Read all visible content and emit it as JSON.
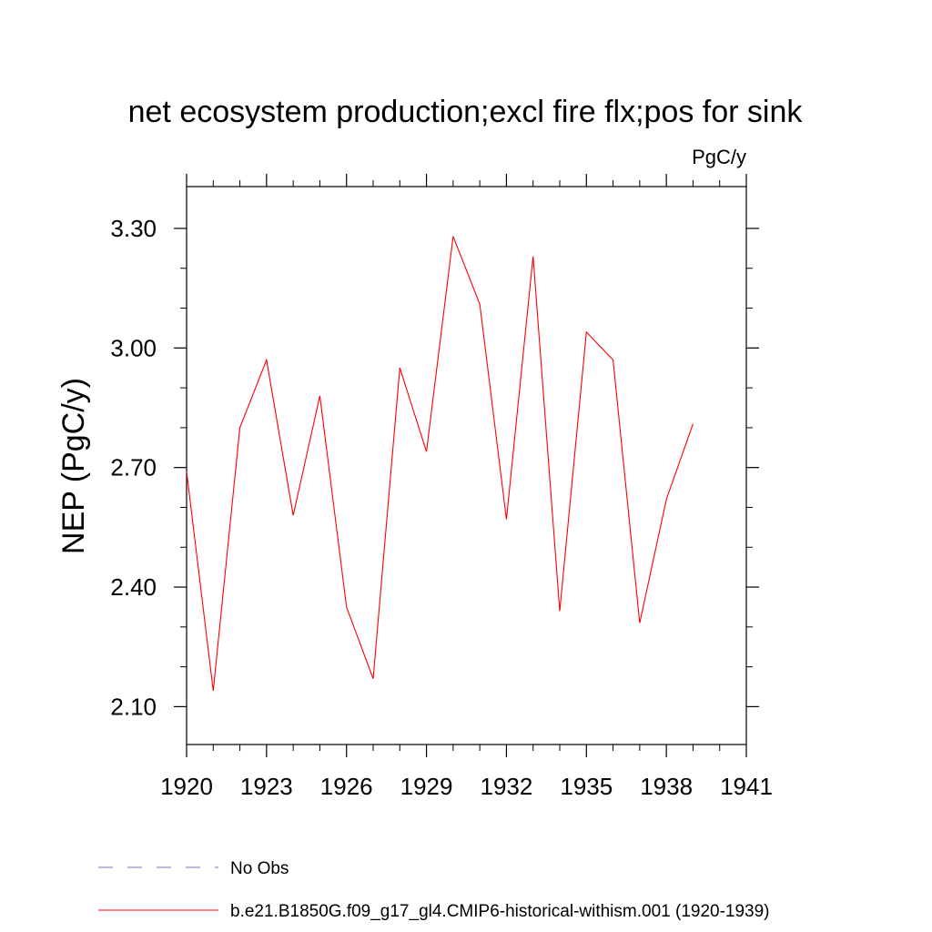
{
  "chart_data": {
    "type": "line",
    "title": "net ecosystem production;excl fire flx;pos for sink",
    "units_label": "PgC/y",
    "ylabel": "NEP  (PgC/y)",
    "xlabel": "",
    "xlim": [
      1920,
      1941
    ],
    "ylim": [
      2.005,
      3.405
    ],
    "x_ticks": [
      1920,
      1923,
      1926,
      1929,
      1932,
      1935,
      1938,
      1941
    ],
    "x_tick_labels": [
      "1920",
      "1923",
      "1926",
      "1929",
      "1932",
      "1935",
      "1938",
      "1941"
    ],
    "y_ticks": [
      2.1,
      2.4,
      2.7,
      3.0,
      3.3
    ],
    "y_tick_labels": [
      "2.10",
      "2.40",
      "2.70",
      "3.00",
      "3.30"
    ],
    "grid": false,
    "legend_position": "bottom-left",
    "series": [
      {
        "name": "b.e21.B1850G.f09_g17_gl4.CMIP6-historical-withism.001 (1920-1939)",
        "color": "#ff0000",
        "style": "solid",
        "x": [
          1920,
          1921,
          1922,
          1923,
          1924,
          1925,
          1926,
          1927,
          1928,
          1929,
          1930,
          1931,
          1932,
          1933,
          1934,
          1935,
          1936,
          1937,
          1938,
          1939
        ],
        "y": [
          2.69,
          2.14,
          2.8,
          2.97,
          2.58,
          2.88,
          2.35,
          2.17,
          2.95,
          2.74,
          3.28,
          3.11,
          2.57,
          3.23,
          2.34,
          3.04,
          2.97,
          2.31,
          2.62,
          2.81
        ]
      },
      {
        "name": "No Obs",
        "color": "#7f6fc0",
        "style": "dashed",
        "x": [],
        "y": []
      }
    ]
  }
}
